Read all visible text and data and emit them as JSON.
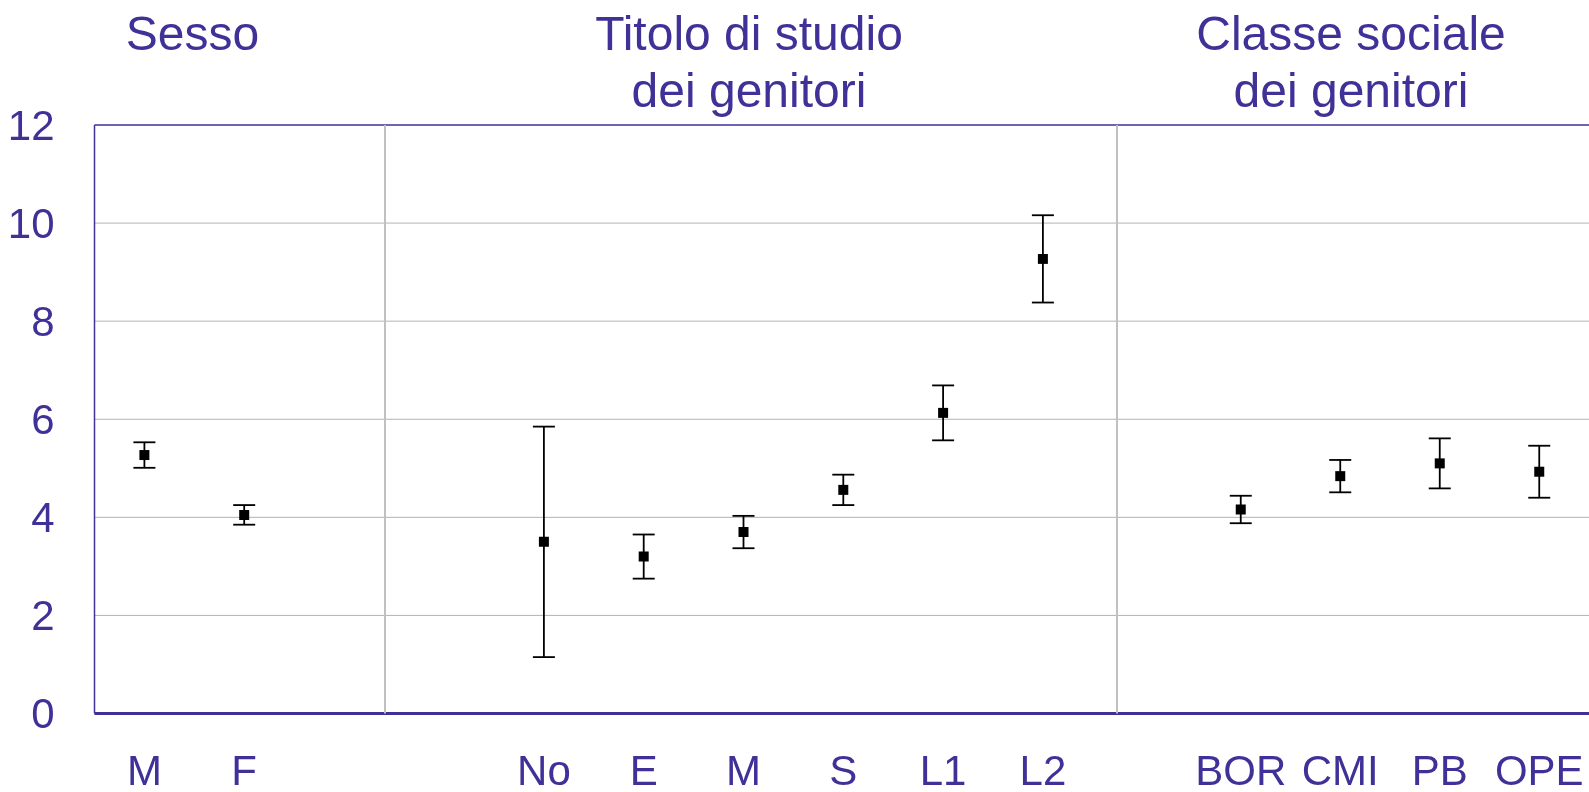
{
  "chart_data": [
    {
      "type": "scatter",
      "title": "Sesso",
      "categories": [
        "M",
        "F"
      ],
      "values": [
        5.27,
        4.05
      ],
      "errors": [
        0.26,
        0.2
      ],
      "color": "#000000",
      "marker": "square",
      "ylim": [
        0,
        12
      ],
      "yticks": [
        0,
        2,
        4,
        6,
        8,
        10,
        12
      ],
      "grid": "y"
    },
    {
      "type": "scatter",
      "title": "Titolo di studio dei genitori",
      "categories": [
        "No",
        "E",
        "M",
        "S",
        "L1",
        "L2"
      ],
      "values": [
        3.5,
        3.2,
        3.7,
        4.56,
        6.13,
        9.27
      ],
      "errors": [
        2.35,
        0.45,
        0.33,
        0.31,
        0.56,
        0.89
      ],
      "color": "#000000",
      "marker": "square",
      "ylim": [
        0,
        12
      ],
      "yticks": [
        0,
        2,
        4,
        6,
        8,
        10,
        12
      ],
      "grid": "y",
      "tick_labels": "x"
    },
    {
      "type": "scatter",
      "title": "Classe sociale dei genitori",
      "categories": [
        "BOR",
        "CMI",
        "PB",
        "OPE"
      ],
      "values": [
        4.16,
        4.84,
        5.1,
        4.93
      ],
      "errors": [
        0.28,
        0.33,
        0.51,
        0.53
      ],
      "color": "#000000",
      "marker": "square",
      "ylim": [
        0,
        12
      ],
      "yticks": [
        0,
        2,
        4,
        6,
        8,
        10,
        12
      ],
      "grid": "y",
      "tick_labels": "x"
    }
  ]
}
